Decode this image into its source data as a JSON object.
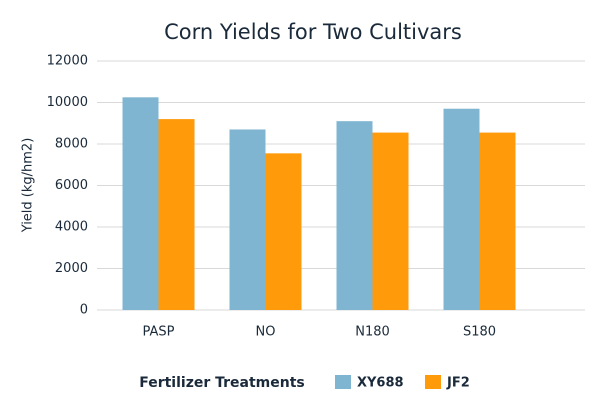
{
  "chart_data": {
    "type": "bar",
    "title": "Corn Yields for Two Cultivars",
    "x_label": "Fertilizer Treatments",
    "y_label": "Yield (kg/hm2)",
    "categories": [
      "PASP",
      "NO",
      "N180",
      "S180"
    ],
    "series": [
      {
        "name": "XY688",
        "color": "#7fb5d0",
        "values": [
          10250,
          8700,
          9100,
          9700
        ]
      },
      {
        "name": "JF2",
        "color": "#ff9a0b",
        "values": [
          9200,
          7550,
          8550,
          8550
        ]
      }
    ],
    "ylim": [
      0,
      12000
    ],
    "yticks": [
      0,
      2000,
      4000,
      6000,
      8000,
      10000,
      12000
    ],
    "grid": true
  }
}
